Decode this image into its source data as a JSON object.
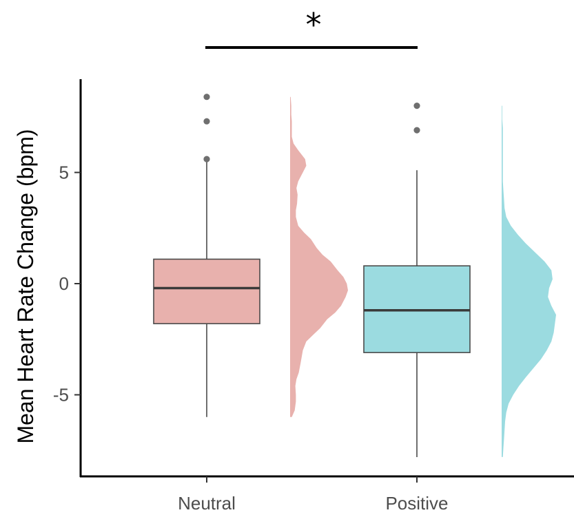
{
  "chart_data": {
    "type": "box",
    "ylabel": "Mean Heart Rate Change (bpm)",
    "xlabel": "",
    "title": "",
    "ylim": [
      -8.6,
      9.0
    ],
    "yticks": [
      -5,
      0,
      5
    ],
    "grid": false,
    "legend": "none",
    "categories": [
      "Neutral",
      "Positive"
    ],
    "series": [
      {
        "category": "Neutral",
        "color": "#e8b1ad",
        "box": {
          "whisker_low": -6.0,
          "q1": -1.8,
          "median": -0.2,
          "q3": 1.1,
          "whisker_high": 5.5
        },
        "outliers": [
          5.6,
          7.3,
          8.4
        ],
        "density": [
          [
            -6.0,
            0.03
          ],
          [
            -5.7,
            0.08
          ],
          [
            -5.3,
            0.1
          ],
          [
            -5.0,
            0.1
          ],
          [
            -4.6,
            0.09
          ],
          [
            -4.3,
            0.11
          ],
          [
            -4.0,
            0.15
          ],
          [
            -3.6,
            0.18
          ],
          [
            -3.3,
            0.2
          ],
          [
            -3.0,
            0.22
          ],
          [
            -2.6,
            0.28
          ],
          [
            -2.3,
            0.4
          ],
          [
            -2.0,
            0.52
          ],
          [
            -1.6,
            0.64
          ],
          [
            -1.3,
            0.78
          ],
          [
            -1.0,
            0.88
          ],
          [
            -0.6,
            0.96
          ],
          [
            -0.3,
            1.0
          ],
          [
            0.0,
            0.98
          ],
          [
            0.3,
            0.92
          ],
          [
            0.6,
            0.82
          ],
          [
            1.0,
            0.7
          ],
          [
            1.3,
            0.56
          ],
          [
            1.6,
            0.46
          ],
          [
            2.0,
            0.36
          ],
          [
            2.3,
            0.24
          ],
          [
            2.6,
            0.14
          ],
          [
            3.0,
            0.1
          ],
          [
            3.3,
            0.1
          ],
          [
            3.6,
            0.12
          ],
          [
            4.0,
            0.13
          ],
          [
            4.3,
            0.11
          ],
          [
            4.6,
            0.14
          ],
          [
            5.0,
            0.22
          ],
          [
            5.3,
            0.28
          ],
          [
            5.6,
            0.26
          ],
          [
            6.0,
            0.14
          ],
          [
            6.3,
            0.06
          ],
          [
            6.6,
            0.03
          ],
          [
            7.0,
            0.03
          ],
          [
            7.3,
            0.03
          ],
          [
            7.6,
            0.02
          ],
          [
            8.0,
            0.02
          ],
          [
            8.4,
            0.01
          ]
        ]
      },
      {
        "category": "Positive",
        "color": "#9bdbe0",
        "box": {
          "whisker_low": -7.8,
          "q1": -3.1,
          "median": -1.2,
          "q3": 0.8,
          "whisker_high": 5.1
        },
        "outliers": [
          6.9,
          8.0
        ],
        "density": [
          [
            -7.8,
            0.02
          ],
          [
            -7.4,
            0.03
          ],
          [
            -7.0,
            0.04
          ],
          [
            -6.6,
            0.05
          ],
          [
            -6.2,
            0.06
          ],
          [
            -5.8,
            0.08
          ],
          [
            -5.4,
            0.12
          ],
          [
            -5.0,
            0.2
          ],
          [
            -4.6,
            0.3
          ],
          [
            -4.2,
            0.42
          ],
          [
            -3.8,
            0.55
          ],
          [
            -3.4,
            0.68
          ],
          [
            -3.0,
            0.78
          ],
          [
            -2.6,
            0.86
          ],
          [
            -2.2,
            0.9
          ],
          [
            -1.8,
            0.92
          ],
          [
            -1.4,
            0.94
          ],
          [
            -1.0,
            0.86
          ],
          [
            -0.6,
            0.8
          ],
          [
            -0.2,
            0.82
          ],
          [
            0.2,
            0.88
          ],
          [
            0.6,
            0.86
          ],
          [
            1.0,
            0.74
          ],
          [
            1.4,
            0.58
          ],
          [
            1.8,
            0.42
          ],
          [
            2.2,
            0.28
          ],
          [
            2.6,
            0.16
          ],
          [
            3.0,
            0.08
          ],
          [
            3.4,
            0.05
          ],
          [
            3.8,
            0.04
          ],
          [
            4.2,
            0.03
          ],
          [
            4.6,
            0.02
          ],
          [
            5.0,
            0.02
          ],
          [
            5.4,
            0.02
          ],
          [
            5.8,
            0.02
          ],
          [
            6.2,
            0.02
          ],
          [
            6.6,
            0.02
          ],
          [
            7.0,
            0.02
          ],
          [
            7.4,
            0.01
          ],
          [
            8.0,
            0.01
          ]
        ]
      }
    ],
    "significance": {
      "label": "*",
      "between": [
        "Neutral",
        "Positive"
      ]
    }
  }
}
